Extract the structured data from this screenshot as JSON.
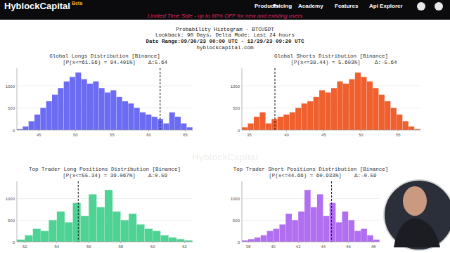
{
  "page": {
    "logo": "HyblockCapital",
    "badge": "Beta",
    "nav": [
      "Products",
      "Pricing",
      "Academy",
      "Features",
      "Api Explorer"
    ],
    "banner": "Limited Time Sale - up to 60% OFF for new and existing users",
    "heading": [
      "Probability Histogram - BTCUSDT",
      "Lookback: 90 Days, Delta Mode: Last 24 hours",
      "Date Range:09/30/23 00:00 UTC - 12/29/23 09:20 UTC",
      "hyblockcapital.com"
    ],
    "watermark": "HyblockCapital"
  },
  "chart_data": [
    {
      "type": "histogram",
      "title": "Global Longs Distribution [Binance]",
      "subtitle": "[P(x<=61.56) = 94.401%]",
      "delta": "Δ:5.64",
      "color": "#6b6cf2",
      "threshold": 61.56,
      "bins": [
        42,
        42.8,
        43.6,
        44.4,
        45.2,
        46,
        46.8,
        47.6,
        48.4,
        49.2,
        50,
        50.8,
        51.6,
        52.4,
        53.2,
        54,
        54.8,
        55.6,
        56.4,
        57.2,
        58,
        58.8,
        59.6,
        60.4,
        61.2,
        62,
        62.8,
        63.6,
        64.4,
        65.2,
        66
      ],
      "values": [
        20,
        80,
        200,
        350,
        500,
        650,
        800,
        950,
        1100,
        1200,
        1300,
        1150,
        1050,
        1100,
        950,
        850,
        900,
        750,
        650,
        600,
        500,
        400,
        350,
        300,
        250,
        150,
        400,
        300,
        150,
        60
      ],
      "xlim": [
        42,
        66
      ],
      "xticks": [
        45,
        50,
        55,
        60,
        65
      ],
      "ylim": [
        0,
        1400
      ],
      "yticks": [
        0,
        500,
        1000
      ],
      "grid": true
    },
    {
      "type": "histogram",
      "title": "Global Shorts Distribution [Binance]",
      "subtitle": "[P(x<=38.44) = 5.603%]",
      "delta": "Δ:-5.64",
      "color": "#f0602e",
      "threshold": 38.44,
      "bins": [
        34,
        34.8,
        35.6,
        36.4,
        37.2,
        38,
        38.8,
        39.6,
        40.4,
        41.2,
        42,
        42.8,
        43.6,
        44.4,
        45.2,
        46,
        46.8,
        47.6,
        48.4,
        49.2,
        50,
        50.8,
        51.6,
        52.4,
        53.2,
        54,
        54.8,
        55.6,
        56.4,
        57.2,
        58
      ],
      "values": [
        60,
        150,
        300,
        400,
        150,
        250,
        300,
        350,
        400,
        500,
        600,
        650,
        750,
        900,
        850,
        950,
        1100,
        1050,
        1150,
        1300,
        1200,
        1100,
        950,
        800,
        650,
        500,
        350,
        200,
        80,
        20
      ],
      "xlim": [
        34,
        58
      ],
      "xticks": [
        35,
        40,
        45,
        50,
        55
      ],
      "ylim": [
        0,
        1400
      ],
      "yticks": [
        0,
        500,
        1000
      ],
      "grid": true
    },
    {
      "type": "histogram",
      "title": "Top Trader Long Positions  Distribution [Binance]",
      "subtitle": "[P(x<=55.34) = 39.067%]",
      "delta": "Δ:0.59",
      "color": "#4fd394",
      "threshold": 55.34,
      "bins": [
        51.5,
        52,
        52.5,
        53,
        53.5,
        54,
        54.5,
        55,
        55.5,
        56,
        56.5,
        57,
        57.5,
        58,
        58.5,
        59,
        59.5,
        60,
        60.5,
        61,
        61.5,
        62,
        62.5
      ],
      "values": [
        50,
        150,
        300,
        250,
        500,
        700,
        450,
        900,
        600,
        1100,
        800,
        1200,
        700,
        500,
        650,
        400,
        300,
        250,
        150,
        100,
        60,
        30
      ],
      "xlim": [
        51.5,
        62.5
      ],
      "xticks": [
        52,
        54,
        56,
        58,
        60,
        62
      ],
      "ylim": [
        0,
        1400
      ],
      "yticks": [
        0,
        500,
        1000
      ],
      "grid": true
    },
    {
      "type": "histogram",
      "title": "Top Trader Short Positions  Distribution [Binance]",
      "subtitle": "[P(x<=44.66) = 60.933%]",
      "delta": "Δ:-0.59",
      "color": "#b26ef0",
      "threshold": 44.66,
      "bins": [
        37.5,
        38,
        38.5,
        39,
        39.5,
        40,
        40.5,
        41,
        41.5,
        42,
        42.5,
        43,
        43.5,
        44,
        44.5,
        45,
        45.5,
        46,
        46.5,
        47,
        47.5,
        48,
        48.5
      ],
      "values": [
        30,
        60,
        100,
        150,
        250,
        300,
        400,
        650,
        500,
        700,
        1200,
        800,
        1100,
        600,
        900,
        450,
        700,
        500,
        250,
        300,
        150,
        50
      ],
      "xlim": [
        37.5,
        48.5
      ],
      "xticks": [
        38,
        40,
        42,
        44,
        46,
        48
      ],
      "ylim": [
        0,
        1400
      ],
      "yticks": [
        0,
        500,
        1000
      ],
      "grid": true
    }
  ]
}
